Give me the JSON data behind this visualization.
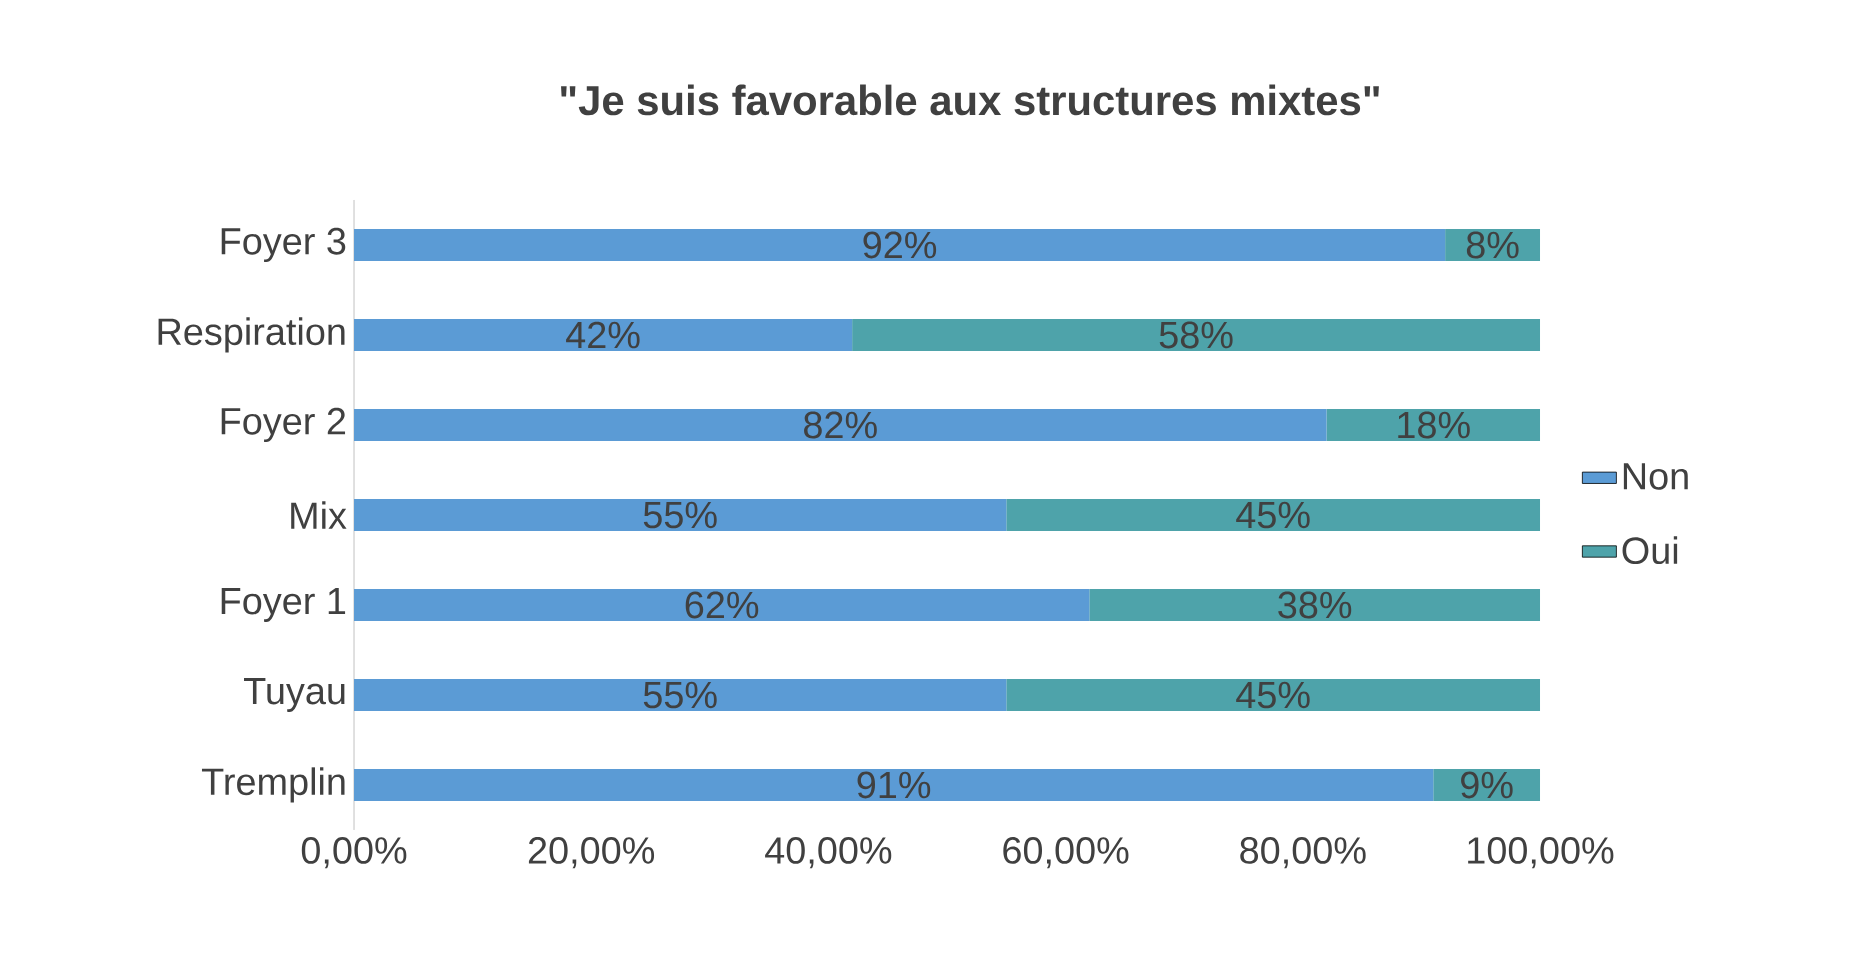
{
  "chart_data": {
    "type": "bar",
    "orientation": "horizontal",
    "stacked": true,
    "title": "\"Je suis favorable aux structures mixtes\"",
    "categories": [
      "Foyer 3",
      "Respiration",
      "Foyer 2",
      "Mix",
      "Foyer 1",
      "Tuyau",
      "Tremplin"
    ],
    "series": [
      {
        "name": "Non",
        "color": "#5b9bd5",
        "values": [
          92,
          42,
          82,
          55,
          62,
          55,
          91
        ],
        "value_labels": [
          "92%",
          "42%",
          "82%",
          "55%",
          "62%",
          "55%",
          "91%"
        ]
      },
      {
        "name": "Oui",
        "color": "#4ea3aa",
        "values": [
          8,
          58,
          18,
          45,
          38,
          45,
          9
        ],
        "value_labels": [
          "8%",
          "58%",
          "18%",
          "45%",
          "38%",
          "45%",
          "9%"
        ]
      }
    ],
    "xlim": [
      0,
      100
    ],
    "xticks": [
      {
        "value": 0,
        "label": "0,00%"
      },
      {
        "value": 20,
        "label": "20,00%"
      },
      {
        "value": 40,
        "label": "40,00%"
      },
      {
        "value": 60,
        "label": "60,00%"
      },
      {
        "value": 80,
        "label": "80,00%"
      },
      {
        "value": 100,
        "label": "100,00%"
      }
    ],
    "legend": "right"
  }
}
